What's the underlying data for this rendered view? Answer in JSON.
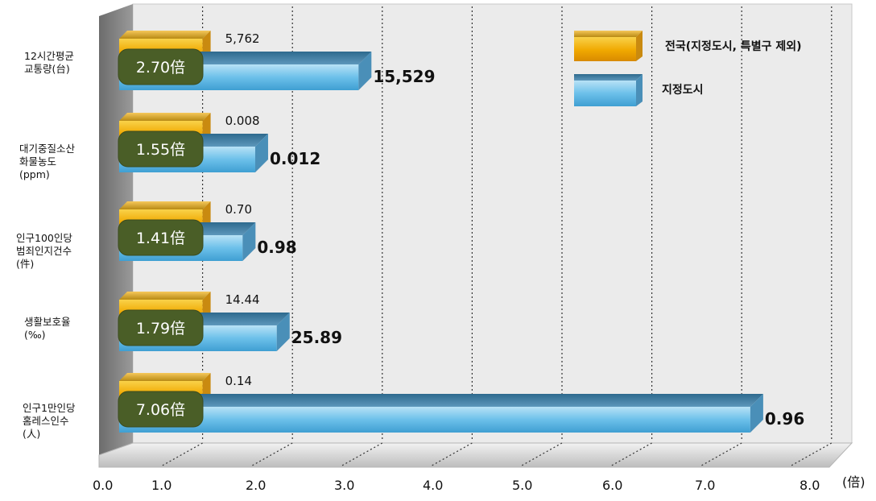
{
  "chart_data": {
    "type": "bar",
    "orientation": "horizontal",
    "x_unit": "(倍)",
    "xlim": [
      0,
      8
    ],
    "ticks": [
      "0.0",
      "1.0",
      "2.0",
      "3.0",
      "4.0",
      "5.0",
      "6.0",
      "7.0",
      "8.0"
    ],
    "grid": true,
    "legend_position": "top-right",
    "legend": [
      {
        "key": "national",
        "label": "전국(지정도시, 특별구 제외)",
        "color": "#f0a800"
      },
      {
        "key": "metro",
        "label": "지정도시",
        "color": "#5ab4e2"
      }
    ],
    "categories": [
      {
        "lines": [
          "12시간평균",
          "교통량(台)"
        ],
        "national_label": "5,762",
        "metro_label": "15,529",
        "ratio_label": "2.70倍",
        "national_x": 1,
        "metro_x": 2.7
      },
      {
        "lines": [
          "대기중질소산",
          "화물농도",
          "(ppm)"
        ],
        "national_label": "0.008",
        "metro_label": "0.012",
        "ratio_label": "1.55倍",
        "national_x": 1,
        "metro_x": 1.55
      },
      {
        "lines": [
          "인구100인당",
          "범죄인지건수",
          "(件)"
        ],
        "national_label": "0.70",
        "metro_label": "0.98",
        "ratio_label": "1.41倍",
        "national_x": 1,
        "metro_x": 1.41
      },
      {
        "lines": [
          "생활보호율",
          "(‰)"
        ],
        "national_label": "14.44",
        "metro_label": "25.89",
        "ratio_label": "1.79倍",
        "national_x": 1,
        "metro_x": 1.79
      },
      {
        "lines": [
          "인구1만인당",
          "홈레스인수",
          "(人)"
        ],
        "national_label": "0.14",
        "metro_label": "0.96",
        "ratio_label": "7.06倍",
        "national_x": 1,
        "metro_x": 7.06
      }
    ]
  }
}
